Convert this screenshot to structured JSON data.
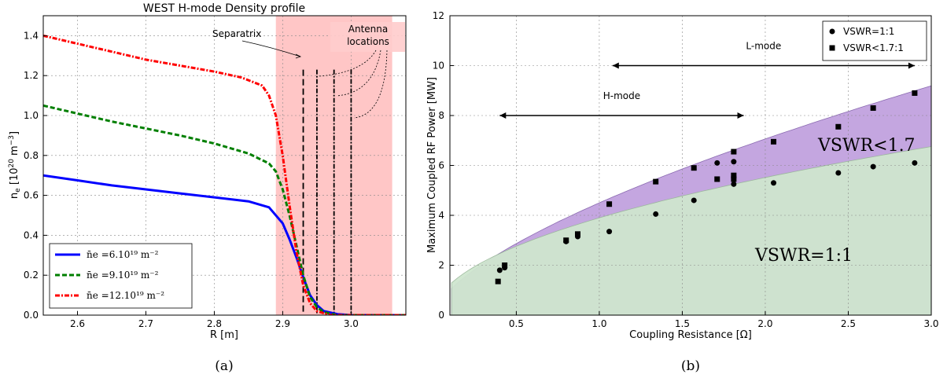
{
  "captions": {
    "a": "(a)",
    "b": "(b)"
  },
  "chart_data": [
    {
      "type": "line",
      "title": "WEST H-mode Density profile",
      "xlabel": "R [m]",
      "ylabel": "n_e [10^20 m^-3]",
      "xlim": [
        2.55,
        3.08
      ],
      "ylim": [
        0.0,
        1.5
      ],
      "xticks": [
        "2.6",
        "2.7",
        "2.8",
        "2.9",
        "3.0"
      ],
      "yticks": [
        "0.0",
        "0.2",
        "0.4",
        "0.6",
        "0.8",
        "1.0",
        "1.2",
        "1.4"
      ],
      "grid": true,
      "legend_position": "lower-left",
      "shaded_region": {
        "x": [
          2.89,
          3.06
        ],
        "color": "#ffb3b3"
      },
      "separatrix_x": 2.93,
      "antenna_x": [
        2.95,
        2.975,
        3.0
      ],
      "annotations": {
        "separatrix": "Separatrix",
        "antenna_line1": "Antenna",
        "antenna_line2": "locations"
      },
      "series": [
        {
          "name": "n̄e =6.10¹⁹ m⁻²",
          "color": "#0000ff",
          "style": "solid",
          "x": [
            2.55,
            2.6,
            2.65,
            2.7,
            2.75,
            2.8,
            2.85,
            2.88,
            2.9,
            2.91,
            2.92,
            2.93,
            2.94,
            2.95,
            2.96,
            2.98,
            3.0,
            3.08
          ],
          "y": [
            0.7,
            0.675,
            0.65,
            0.63,
            0.61,
            0.59,
            0.57,
            0.54,
            0.46,
            0.38,
            0.29,
            0.19,
            0.1,
            0.05,
            0.02,
            0.005,
            0.0,
            0.0
          ]
        },
        {
          "name": "n̄e =9.10¹⁹ m⁻²",
          "color": "#007f00",
          "style": "dashed",
          "x": [
            2.55,
            2.6,
            2.65,
            2.7,
            2.75,
            2.8,
            2.85,
            2.88,
            2.89,
            2.9,
            2.91,
            2.92,
            2.93,
            2.94,
            2.95,
            2.96,
            2.98,
            3.08
          ],
          "y": [
            1.05,
            1.01,
            0.97,
            0.935,
            0.9,
            0.86,
            0.81,
            0.76,
            0.72,
            0.63,
            0.5,
            0.35,
            0.2,
            0.09,
            0.04,
            0.015,
            0.0,
            0.0
          ]
        },
        {
          "name": "n̄e =12.10¹⁹ m⁻²",
          "color": "#ff0000",
          "style": "dashdot",
          "x": [
            2.55,
            2.6,
            2.65,
            2.7,
            2.75,
            2.8,
            2.84,
            2.87,
            2.88,
            2.89,
            2.9,
            2.91,
            2.92,
            2.93,
            2.94,
            2.95,
            2.97,
            3.0,
            3.08
          ],
          "y": [
            1.4,
            1.36,
            1.32,
            1.28,
            1.25,
            1.22,
            1.19,
            1.15,
            1.1,
            1.0,
            0.8,
            0.55,
            0.32,
            0.15,
            0.06,
            0.02,
            0.0,
            0.0,
            0.0
          ]
        }
      ]
    },
    {
      "type": "scatter",
      "xlabel": "Coupling Resistance [Ω]",
      "ylabel": "Maximum Coupled RF Power [MW]",
      "xlim": [
        0.1,
        3.0
      ],
      "ylim": [
        0,
        12
      ],
      "xticks": [
        "0.5",
        "1.0",
        "1.5",
        "2.0",
        "2.5",
        "3.0"
      ],
      "yticks": [
        "0",
        "2",
        "4",
        "6",
        "8",
        "10",
        "12"
      ],
      "grid": true,
      "legend_position": "top-right",
      "regions": {
        "vswr_1_1": {
          "label": "VSWR=1:1",
          "color": "#cfe6cf",
          "a": 3.9,
          "p": 0.5
        },
        "vswr_1_7": {
          "label": "VSWR<1.7",
          "color": "#c4a6e0",
          "a": 4.5,
          "p": 0.65
        }
      },
      "ranges": [
        {
          "label": "L-mode",
          "x": [
            1.08,
            2.9
          ],
          "y": 10
        },
        {
          "label": "H-mode",
          "x": [
            0.4,
            1.87
          ],
          "y": 8
        }
      ],
      "series": [
        {
          "name": "VSWR=1:1",
          "marker": "circle",
          "x": [
            0.4,
            0.43,
            0.8,
            0.87,
            1.06,
            1.34,
            1.57,
            1.71,
            1.81,
            1.81,
            2.05,
            2.44,
            2.65,
            2.9
          ],
          "y": [
            1.8,
            1.9,
            2.95,
            3.15,
            3.35,
            4.05,
            4.6,
            6.1,
            5.25,
            6.15,
            5.3,
            5.7,
            5.95,
            6.1
          ]
        },
        {
          "name": "VSWR<1.7:1",
          "marker": "square",
          "x": [
            0.39,
            0.43,
            0.8,
            0.87,
            1.06,
            1.34,
            1.57,
            1.71,
            1.81,
            1.81,
            1.81,
            2.05,
            2.44,
            2.65,
            2.9
          ],
          "y": [
            1.35,
            2.0,
            3.0,
            3.25,
            4.45,
            5.35,
            5.9,
            5.45,
            6.55,
            5.6,
            5.45,
            6.95,
            7.55,
            8.3,
            8.9
          ]
        }
      ]
    }
  ]
}
